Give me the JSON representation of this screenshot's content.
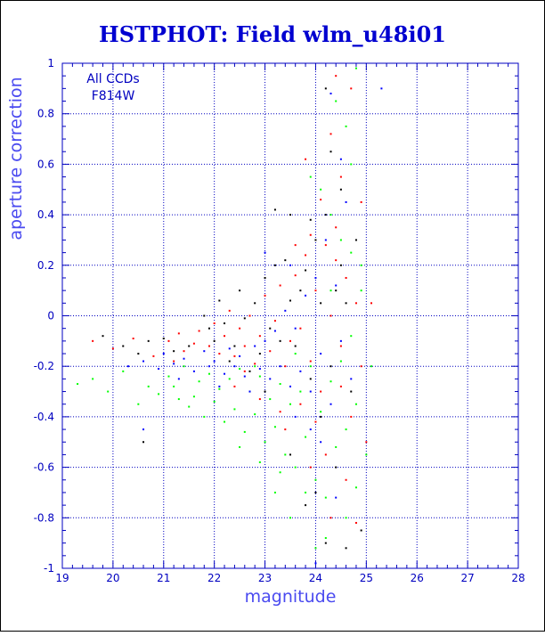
{
  "chart_data": {
    "type": "scatter",
    "title": "HSTPHOT: Field wlm_u48i01",
    "xlabel": "magnitude",
    "ylabel": "aperture correction",
    "xlim": [
      19,
      28
    ],
    "ylim": [
      -1,
      1
    ],
    "x_ticks": [
      "19",
      "20",
      "21",
      "22",
      "23",
      "24",
      "25",
      "26",
      "27",
      "28"
    ],
    "y_ticks": [
      "1",
      "0.8",
      "0.6",
      "0.4",
      "0.2",
      "0",
      "-0.2",
      "-0.4",
      "-0.6",
      "-0.8",
      "-1"
    ],
    "grid": true,
    "legend": "top-left",
    "annotation": [
      "All CCDs",
      "F814W"
    ],
    "colors": {
      "title": "#0000d0",
      "axis": "#0000c0",
      "label": "#4a4af0",
      "ccd_black": "#000000",
      "ccd_red": "#ff0000",
      "ccd_green": "#00ff00",
      "ccd_blue": "#0000ff"
    },
    "series": [
      {
        "color": "#000000",
        "points": [
          [
            19.8,
            -0.08
          ],
          [
            20.2,
            -0.12
          ],
          [
            20.5,
            -0.15
          ],
          [
            20.6,
            -0.5
          ],
          [
            20.7,
            -0.1
          ],
          [
            21.0,
            -0.09
          ],
          [
            21.2,
            -0.14
          ],
          [
            21.5,
            -0.12
          ],
          [
            21.8,
            0.0
          ],
          [
            21.9,
            -0.05
          ],
          [
            22.0,
            -0.1
          ],
          [
            22.1,
            0.06
          ],
          [
            22.2,
            -0.03
          ],
          [
            22.4,
            -0.12
          ],
          [
            22.5,
            0.1
          ],
          [
            22.6,
            -0.01
          ],
          [
            22.8,
            0.05
          ],
          [
            22.9,
            -0.15
          ],
          [
            23.0,
            0.15
          ],
          [
            23.1,
            -0.05
          ],
          [
            23.2,
            0.2
          ],
          [
            23.3,
            -0.1
          ],
          [
            23.4,
            0.22
          ],
          [
            23.5,
            0.06
          ],
          [
            23.6,
            -0.12
          ],
          [
            23.7,
            0.1
          ],
          [
            23.8,
            0.18
          ],
          [
            23.9,
            -0.25
          ],
          [
            24.0,
            0.3
          ],
          [
            24.1,
            0.05
          ],
          [
            24.2,
            0.4
          ],
          [
            24.3,
            -0.2
          ],
          [
            24.4,
            0.1
          ],
          [
            24.5,
            0.2
          ],
          [
            24.6,
            0.05
          ],
          [
            24.7,
            -0.3
          ],
          [
            24.2,
            0.9
          ],
          [
            24.5,
            0.5
          ],
          [
            23.9,
            0.38
          ],
          [
            23.5,
            0.4
          ],
          [
            23.2,
            0.42
          ],
          [
            24.4,
            -0.6
          ],
          [
            24.2,
            -0.9
          ],
          [
            24.6,
            -0.92
          ],
          [
            24.0,
            -0.7
          ],
          [
            23.5,
            -0.55
          ],
          [
            23.8,
            -0.75
          ],
          [
            24.9,
            -0.85
          ],
          [
            24.3,
            0.65
          ],
          [
            23.0,
            -0.3
          ],
          [
            22.7,
            -0.22
          ],
          [
            22.3,
            -0.18
          ],
          [
            24.8,
            0.3
          ],
          [
            24.1,
            -0.4
          ]
        ]
      },
      {
        "color": "#ff0000",
        "points": [
          [
            19.6,
            -0.1
          ],
          [
            20.0,
            -0.13
          ],
          [
            20.4,
            -0.09
          ],
          [
            20.8,
            -0.16
          ],
          [
            21.1,
            -0.1
          ],
          [
            21.3,
            -0.07
          ],
          [
            21.4,
            -0.14
          ],
          [
            21.6,
            -0.11
          ],
          [
            21.7,
            -0.06
          ],
          [
            21.9,
            -0.12
          ],
          [
            22.0,
            -0.03
          ],
          [
            22.1,
            -0.15
          ],
          [
            22.2,
            -0.08
          ],
          [
            22.3,
            0.02
          ],
          [
            22.4,
            -0.16
          ],
          [
            22.5,
            -0.05
          ],
          [
            22.6,
            -0.12
          ],
          [
            22.7,
            0.0
          ],
          [
            22.8,
            -0.19
          ],
          [
            22.9,
            -0.08
          ],
          [
            23.0,
            0.08
          ],
          [
            23.1,
            -0.14
          ],
          [
            23.2,
            -0.02
          ],
          [
            23.3,
            0.12
          ],
          [
            23.4,
            -0.2
          ],
          [
            23.5,
            -0.1
          ],
          [
            23.6,
            0.16
          ],
          [
            23.7,
            -0.05
          ],
          [
            23.8,
            0.24
          ],
          [
            23.9,
            -0.18
          ],
          [
            24.0,
            0.1
          ],
          [
            24.1,
            -0.3
          ],
          [
            24.2,
            0.28
          ],
          [
            24.3,
            0.0
          ],
          [
            24.4,
            0.35
          ],
          [
            24.5,
            -0.12
          ],
          [
            24.6,
            0.15
          ],
          [
            24.7,
            -0.4
          ],
          [
            24.8,
            0.05
          ],
          [
            24.3,
            0.72
          ],
          [
            24.5,
            0.55
          ],
          [
            24.1,
            0.46
          ],
          [
            24.7,
            0.9
          ],
          [
            24.4,
            0.95
          ],
          [
            23.9,
            0.32
          ],
          [
            23.6,
            0.28
          ],
          [
            24.9,
            -0.2
          ],
          [
            25.0,
            -0.5
          ],
          [
            24.6,
            -0.65
          ],
          [
            24.2,
            -0.55
          ],
          [
            23.9,
            -0.6
          ],
          [
            23.4,
            -0.45
          ],
          [
            24.8,
            -0.82
          ],
          [
            24.3,
            -0.8
          ],
          [
            23.7,
            -0.35
          ],
          [
            22.4,
            -0.28
          ],
          [
            22.9,
            -0.33
          ],
          [
            23.3,
            -0.38
          ],
          [
            24.0,
            -0.42
          ],
          [
            24.5,
            -0.28
          ],
          [
            21.2,
            -0.18
          ],
          [
            22.6,
            -0.22
          ],
          [
            23.8,
            0.62
          ],
          [
            24.9,
            0.45
          ],
          [
            25.1,
            0.05
          ],
          [
            24.4,
            0.22
          ]
        ]
      },
      {
        "color": "#00ff00",
        "points": [
          [
            19.3,
            -0.27
          ],
          [
            19.6,
            -0.25
          ],
          [
            19.9,
            -0.3
          ],
          [
            20.2,
            -0.22
          ],
          [
            20.5,
            -0.35
          ],
          [
            20.7,
            -0.28
          ],
          [
            20.9,
            -0.31
          ],
          [
            21.1,
            -0.24
          ],
          [
            21.3,
            -0.33
          ],
          [
            21.4,
            -0.2
          ],
          [
            21.5,
            -0.36
          ],
          [
            21.7,
            -0.26
          ],
          [
            21.8,
            -0.4
          ],
          [
            21.9,
            -0.23
          ],
          [
            22.0,
            -0.34
          ],
          [
            22.1,
            -0.29
          ],
          [
            22.2,
            -0.42
          ],
          [
            22.3,
            -0.25
          ],
          [
            22.4,
            -0.37
          ],
          [
            22.5,
            -0.21
          ],
          [
            22.6,
            -0.46
          ],
          [
            22.7,
            -0.3
          ],
          [
            22.8,
            -0.39
          ],
          [
            22.9,
            -0.24
          ],
          [
            23.0,
            -0.5
          ],
          [
            23.1,
            -0.33
          ],
          [
            23.2,
            -0.44
          ],
          [
            23.3,
            -0.27
          ],
          [
            23.4,
            -0.55
          ],
          [
            23.5,
            -0.35
          ],
          [
            23.6,
            -0.6
          ],
          [
            23.7,
            -0.3
          ],
          [
            23.8,
            -0.48
          ],
          [
            23.9,
            -0.2
          ],
          [
            24.0,
            -0.65
          ],
          [
            24.1,
            -0.38
          ],
          [
            24.2,
            -0.72
          ],
          [
            24.3,
            -0.26
          ],
          [
            24.4,
            -0.52
          ],
          [
            24.5,
            -0.18
          ],
          [
            24.6,
            -0.45
          ],
          [
            24.7,
            -0.08
          ],
          [
            24.8,
            -0.35
          ],
          [
            24.9,
            0.1
          ],
          [
            25.0,
            -0.55
          ],
          [
            24.5,
            0.3
          ],
          [
            24.7,
            0.6
          ],
          [
            24.8,
            0.98
          ],
          [
            24.6,
            0.75
          ],
          [
            24.3,
            0.4
          ],
          [
            24.1,
            0.5
          ],
          [
            23.9,
            0.55
          ],
          [
            24.4,
            0.85
          ],
          [
            24.9,
            0.2
          ],
          [
            25.1,
            -0.2
          ],
          [
            24.2,
            -0.88
          ],
          [
            23.8,
            -0.7
          ],
          [
            24.6,
            -0.8
          ],
          [
            24.0,
            -0.92
          ],
          [
            23.5,
            -0.8
          ],
          [
            23.3,
            -0.62
          ],
          [
            22.9,
            -0.58
          ],
          [
            22.5,
            -0.52
          ],
          [
            21.2,
            -0.28
          ],
          [
            21.6,
            -0.32
          ],
          [
            22.8,
            -0.2
          ],
          [
            23.6,
            -0.15
          ],
          [
            24.3,
            0.1
          ],
          [
            24.7,
            0.25
          ],
          [
            23.2,
            -0.7
          ],
          [
            24.8,
            -0.68
          ]
        ]
      },
      {
        "color": "#0000ff",
        "points": [
          [
            20.3,
            -0.2
          ],
          [
            20.6,
            -0.18
          ],
          [
            20.9,
            -0.21
          ],
          [
            21.0,
            -0.15
          ],
          [
            21.2,
            -0.19
          ],
          [
            21.4,
            -0.17
          ],
          [
            21.6,
            -0.22
          ],
          [
            21.8,
            -0.14
          ],
          [
            21.9,
            -0.2
          ],
          [
            22.0,
            -0.18
          ],
          [
            22.2,
            -0.23
          ],
          [
            22.3,
            -0.13
          ],
          [
            22.4,
            -0.2
          ],
          [
            22.5,
            -0.16
          ],
          [
            22.6,
            -0.24
          ],
          [
            22.8,
            -0.12
          ],
          [
            22.9,
            -0.21
          ],
          [
            23.0,
            -0.1
          ],
          [
            23.1,
            -0.25
          ],
          [
            23.2,
            -0.06
          ],
          [
            23.3,
            -0.2
          ],
          [
            23.4,
            0.02
          ],
          [
            23.5,
            -0.28
          ],
          [
            23.6,
            -0.05
          ],
          [
            23.7,
            -0.22
          ],
          [
            23.8,
            0.08
          ],
          [
            23.9,
            -0.3
          ],
          [
            24.0,
            0.15
          ],
          [
            24.1,
            -0.15
          ],
          [
            24.2,
            0.3
          ],
          [
            24.3,
            -0.35
          ],
          [
            24.4,
            0.12
          ],
          [
            24.5,
            -0.1
          ],
          [
            24.6,
            0.45
          ],
          [
            24.7,
            -0.25
          ],
          [
            24.3,
            0.88
          ],
          [
            24.5,
            0.62
          ],
          [
            25.3,
            0.9
          ],
          [
            24.1,
            -0.5
          ],
          [
            23.9,
            -0.45
          ],
          [
            24.4,
            -0.72
          ],
          [
            24.0,
            -0.98
          ],
          [
            23.6,
            -0.4
          ],
          [
            22.7,
            -0.3
          ],
          [
            22.1,
            -0.28
          ],
          [
            20.6,
            -0.45
          ],
          [
            21.3,
            -0.25
          ],
          [
            23.0,
            0.25
          ],
          [
            23.5,
            0.2
          ]
        ]
      }
    ]
  }
}
